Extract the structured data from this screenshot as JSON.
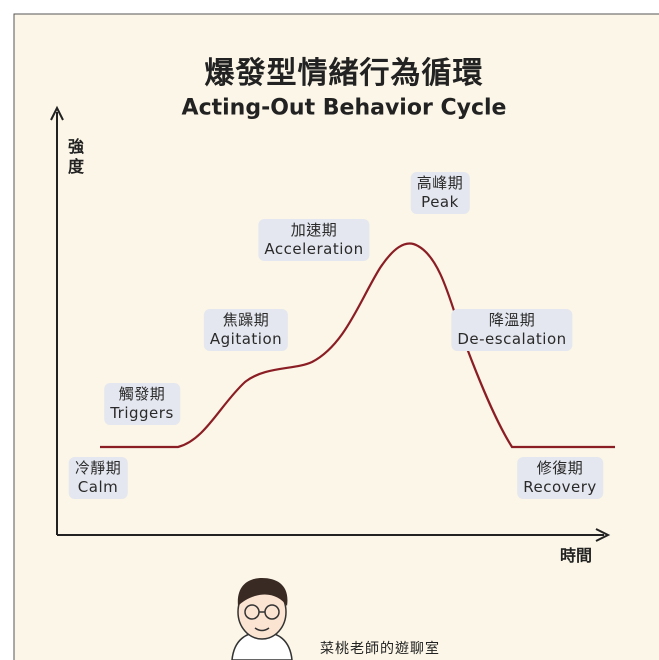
{
  "header": {
    "title": "爆發型情緒行為循環",
    "subtitle": "Acting-Out Behavior Cycle"
  },
  "axes": {
    "y_label": "強度",
    "x_label": "時間"
  },
  "phases": [
    {
      "zh": "冷靜期",
      "en": "Calm"
    },
    {
      "zh": "觸發期",
      "en": "Triggers"
    },
    {
      "zh": "焦躁期",
      "en": "Agitation"
    },
    {
      "zh": "加速期",
      "en": "Acceleration"
    },
    {
      "zh": "高峰期",
      "en": "Peak"
    },
    {
      "zh": "降溫期",
      "en": "De-escalation"
    },
    {
      "zh": "修復期",
      "en": "Recovery"
    }
  ],
  "footer": {
    "brand": "菜桃老師的遊聊室"
  }
}
